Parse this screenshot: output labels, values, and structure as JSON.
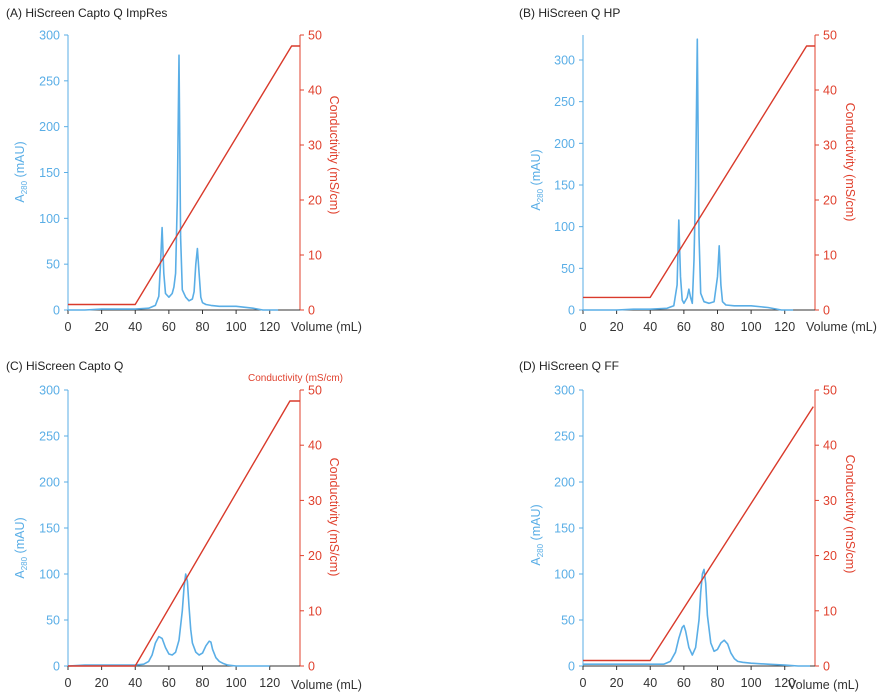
{
  "chart_data": [
    {
      "type": "line",
      "title": "(A) HiScreen Capto Q ImpRes",
      "xlabel": "Volume (mL)",
      "ylabel_left": "A280 (mAU)",
      "ylabel_left_main": "A",
      "ylabel_left_sub": "280",
      "ylabel_left_rest": " (mAU)",
      "ylabel_right": "Conductivity (mS/cm)",
      "x_ticks": [
        "0",
        "20",
        "40",
        "60",
        "80",
        "100",
        "120"
      ],
      "y_left_ticks": [
        "0",
        "50",
        "100",
        "150",
        "200",
        "250",
        "300"
      ],
      "y_right_ticks": [
        "0",
        "10",
        "20",
        "30",
        "40",
        "50"
      ],
      "xlim": [
        0,
        138
      ],
      "ylim_left": [
        0,
        300
      ],
      "ylim_right": [
        0,
        50
      ],
      "series": [
        {
          "color": "#5aaee6",
          "x": [
            0,
            10,
            20,
            30,
            40,
            48,
            52,
            54,
            55,
            56,
            57,
            58,
            60,
            62,
            63,
            64,
            65,
            66,
            67,
            68,
            70,
            72,
            74,
            75,
            76,
            77,
            78,
            79,
            80,
            82,
            85,
            90,
            100,
            110,
            116,
            125
          ],
          "y": [
            0,
            0,
            1,
            1,
            1,
            2,
            5,
            15,
            50,
            90,
            40,
            18,
            14,
            18,
            25,
            40,
            120,
            278,
            80,
            22,
            14,
            10,
            12,
            20,
            50,
            67,
            40,
            14,
            8,
            6,
            5,
            4,
            4,
            2,
            0,
            0
          ]
        },
        {
          "color": "#d93a2b",
          "x": [
            0,
            40,
            133,
            138
          ],
          "y": [
            1,
            1,
            48,
            48
          ]
        }
      ]
    },
    {
      "type": "line",
      "title": "(B) HiScreen Q HP",
      "xlabel": "Volume (mL)",
      "ylabel_left": "A280 (mAU)",
      "ylabel_left_main": "A",
      "ylabel_left_sub": "280",
      "ylabel_left_rest": " (mAU)",
      "ylabel_right": "Conductivity (mS/cm)",
      "x_ticks": [
        "0",
        "20",
        "40",
        "60",
        "80",
        "100",
        "120"
      ],
      "y_left_ticks": [
        "0",
        "50",
        "100",
        "150",
        "200",
        "250",
        "300"
      ],
      "y_right_ticks": [
        "0",
        "10",
        "20",
        "30",
        "40",
        "50"
      ],
      "xlim": [
        0,
        138
      ],
      "ylim_left": [
        0,
        330
      ],
      "ylim_right": [
        0,
        50
      ],
      "series": [
        {
          "color": "#5aaee6",
          "x": [
            0,
            10,
            20,
            30,
            40,
            50,
            54,
            56,
            57,
            58,
            59,
            60,
            62,
            63,
            64,
            65,
            66,
            67,
            68,
            69,
            70,
            72,
            75,
            78,
            80,
            81,
            82,
            83,
            85,
            90,
            100,
            110,
            118,
            125
          ],
          "y": [
            0,
            0,
            0,
            1,
            1,
            2,
            5,
            30,
            108,
            40,
            12,
            8,
            15,
            25,
            15,
            8,
            60,
            150,
            325,
            90,
            20,
            10,
            8,
            10,
            40,
            77,
            30,
            10,
            6,
            5,
            5,
            3,
            0,
            0
          ]
        },
        {
          "color": "#d93a2b",
          "x": [
            0,
            40,
            133,
            138
          ],
          "y": [
            2.3,
            2.3,
            48,
            48
          ]
        }
      ]
    },
    {
      "type": "line",
      "title": "(C) HiScreen Capto Q",
      "annotation": "Conductivity (mS/cm)",
      "xlabel": "Volume (mL)",
      "ylabel_left": "A280 (mAU)",
      "ylabel_left_main": "A",
      "ylabel_left_sub": "280",
      "ylabel_left_rest": " (mAU)",
      "ylabel_right": "Conductivity (mS/cm)",
      "x_ticks": [
        "0",
        "20",
        "40",
        "60",
        "80",
        "100",
        "120"
      ],
      "y_left_ticks": [
        "0",
        "50",
        "100",
        "150",
        "200",
        "250",
        "300"
      ],
      "y_right_ticks": [
        "0",
        "10",
        "20",
        "30",
        "40",
        "50"
      ],
      "xlim": [
        0,
        138
      ],
      "ylim_left": [
        0,
        300
      ],
      "ylim_right": [
        0,
        50
      ],
      "series": [
        {
          "color": "#5aaee6",
          "x": [
            0,
            10,
            20,
            30,
            40,
            45,
            48,
            50,
            52,
            54,
            56,
            58,
            60,
            62,
            64,
            66,
            68,
            69,
            70,
            71,
            72,
            73,
            74,
            76,
            78,
            80,
            82,
            84,
            85,
            86,
            88,
            90,
            92,
            95,
            100,
            110,
            120
          ],
          "y": [
            0,
            1,
            1,
            1,
            1,
            2,
            5,
            12,
            25,
            32,
            30,
            20,
            13,
            12,
            15,
            28,
            60,
            85,
            100,
            92,
            65,
            40,
            25,
            15,
            12,
            14,
            22,
            27,
            26,
            18,
            9,
            5,
            3,
            1,
            0,
            0,
            0
          ]
        },
        {
          "color": "#d93a2b",
          "x": [
            0,
            40,
            132,
            138
          ],
          "y": [
            0,
            0,
            48,
            48
          ]
        }
      ]
    },
    {
      "type": "line",
      "title": "(D) HiScreen Q FF",
      "xlabel": "Volume (mL)",
      "ylabel_left": "A280 (mAU)",
      "ylabel_left_main": "A",
      "ylabel_left_sub": "280",
      "ylabel_left_rest": " (mAU)",
      "ylabel_right": "Conductivity (mS/cm)",
      "x_ticks": [
        "0",
        "20",
        "40",
        "60",
        "80",
        "100",
        "120"
      ],
      "y_left_ticks": [
        "0",
        "50",
        "100",
        "150",
        "200",
        "250",
        "300"
      ],
      "y_right_ticks": [
        "0",
        "10",
        "20",
        "30",
        "40",
        "50"
      ],
      "xlim": [
        0,
        138
      ],
      "ylim_left": [
        0,
        300
      ],
      "ylim_right": [
        0,
        50
      ],
      "series": [
        {
          "color": "#5aaee6",
          "x": [
            0,
            10,
            20,
            30,
            40,
            48,
            52,
            55,
            57,
            59,
            60,
            61,
            63,
            65,
            67,
            69,
            70,
            71,
            72,
            73,
            74,
            76,
            78,
            80,
            82,
            84,
            86,
            88,
            90,
            92,
            95,
            100,
            110,
            120,
            128,
            135
          ],
          "y": [
            2,
            2,
            2,
            2,
            2,
            2,
            5,
            15,
            30,
            42,
            44,
            38,
            20,
            12,
            20,
            50,
            80,
            100,
            105,
            90,
            55,
            25,
            16,
            18,
            25,
            28,
            24,
            14,
            8,
            5,
            4,
            3,
            2,
            1,
            0,
            0
          ]
        },
        {
          "color": "#d93a2b",
          "x": [
            0,
            40,
            137
          ],
          "y": [
            1,
            1,
            47
          ]
        }
      ]
    }
  ]
}
